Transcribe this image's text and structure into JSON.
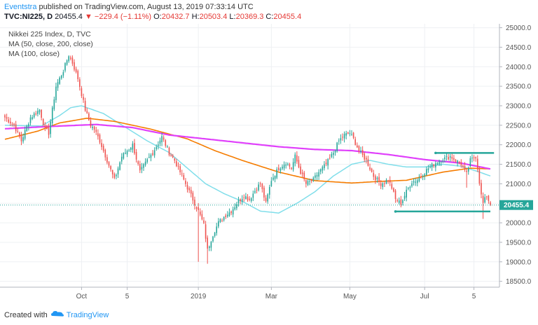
{
  "header": {
    "author": "Eventstra",
    "published_text": " published on TradingView.com, August 13, 2019 07:33:14 UTC",
    "symbol": "TVC:NI225, D",
    "last": "20455.4",
    "arrow": "▼",
    "change": "−229.4 (−1.11%)",
    "o_label": "O:",
    "o_value": "20432.7",
    "h_label": "H:",
    "h_value": "20503.4",
    "l_label": "L:",
    "l_value": "20369.3",
    "c_label": "C:",
    "c_value": "20455.4"
  },
  "legend": {
    "title": "Nikkei 225 Index, D, TVC",
    "ma1": "MA (50, close, 200, close)",
    "ma2": "MA (100, close)"
  },
  "footer": {
    "created_with": "Created with",
    "brand": "TradingView"
  },
  "colors": {
    "up": "#26a69a",
    "down": "#ef5350",
    "ma50": "#80deea",
    "ma100": "#f57c00",
    "ma200": "#e040fb",
    "annotation": "#26a69a",
    "price_tag": "#26a69a"
  },
  "chart_data": {
    "type": "candlestick",
    "title": "Nikkei 225 Index, D, TVC",
    "x_ticks": [
      "Oct",
      "5",
      "2019",
      "Mar",
      "May",
      "Jul",
      "5"
    ],
    "y_ticks": [
      18500,
      19000,
      19500,
      20000,
      20500,
      21000,
      21500,
      22000,
      22500,
      23000,
      23500,
      24000,
      24500,
      25000
    ],
    "ylim": [
      18350,
      25100
    ],
    "last_price": 20455.4,
    "anchors": [
      [
        0,
        22700
      ],
      [
        5,
        22500
      ],
      [
        9,
        22100
      ],
      [
        14,
        22700
      ],
      [
        19,
        22900
      ],
      [
        22,
        22400
      ],
      [
        24,
        22300
      ],
      [
        28,
        23500
      ],
      [
        32,
        23900
      ],
      [
        35,
        24300
      ],
      [
        37,
        24100
      ],
      [
        40,
        23700
      ],
      [
        44,
        22900
      ],
      [
        47,
        22500
      ],
      [
        49,
        22400
      ],
      [
        52,
        22100
      ],
      [
        56,
        21600
      ],
      [
        60,
        21100
      ],
      [
        64,
        21700
      ],
      [
        68,
        21900
      ],
      [
        70,
        22000
      ],
      [
        74,
        21300
      ],
      [
        78,
        21600
      ],
      [
        81,
        21800
      ],
      [
        86,
        22200
      ],
      [
        90,
        21800
      ],
      [
        93,
        21600
      ],
      [
        97,
        21200
      ],
      [
        99,
        21000
      ],
      [
        103,
        20600
      ],
      [
        106,
        20300
      ],
      [
        109,
        19950
      ],
      [
        111,
        19300
      ],
      [
        114,
        19700
      ],
      [
        117,
        20000
      ],
      [
        121,
        20200
      ],
      [
        124,
        20300
      ],
      [
        127,
        20500
      ],
      [
        131,
        20700
      ],
      [
        134,
        20600
      ],
      [
        138,
        20900
      ],
      [
        140,
        21000
      ],
      [
        143,
        20500
      ],
      [
        146,
        21100
      ],
      [
        150,
        21400
      ],
      [
        154,
        21550
      ],
      [
        157,
        21400
      ],
      [
        159,
        21700
      ],
      [
        162,
        21300
      ],
      [
        165,
        21000
      ],
      [
        169,
        21100
      ],
      [
        172,
        21300
      ],
      [
        176,
        21500
      ],
      [
        180,
        21800
      ],
      [
        183,
        22100
      ],
      [
        186,
        22250
      ],
      [
        189,
        22300
      ],
      [
        191,
        22150
      ],
      [
        194,
        21850
      ],
      [
        198,
        21600
      ],
      [
        202,
        21200
      ],
      [
        206,
        21000
      ],
      [
        210,
        21100
      ],
      [
        212,
        20900
      ],
      [
        214,
        20600
      ],
      [
        217,
        20500
      ],
      [
        220,
        20800
      ],
      [
        223,
        21050
      ],
      [
        226,
        21100
      ],
      [
        229,
        21250
      ],
      [
        232,
        21400
      ],
      [
        235,
        21500
      ],
      [
        238,
        21600
      ],
      [
        241,
        21650
      ],
      [
        244,
        21700
      ],
      [
        247,
        21600
      ],
      [
        250,
        21500
      ],
      [
        253,
        21250
      ],
      [
        255,
        21600
      ],
      [
        258,
        21700
      ],
      [
        259,
        21400
      ],
      [
        261,
        20700
      ],
      [
        262,
        20500
      ],
      [
        264,
        20700
      ],
      [
        266,
        20455
      ]
    ],
    "wicks": [
      [
        253,
        20900,
        21300
      ],
      [
        262,
        20100,
        20550
      ],
      [
        106,
        19000,
        20400
      ],
      [
        111,
        18950,
        19500
      ]
    ],
    "moving_averages": [
      {
        "name": "MA (50)",
        "points": [
          [
            0,
            22500
          ],
          [
            20,
            22480
          ],
          [
            30,
            22750
          ],
          [
            36,
            22950
          ],
          [
            42,
            23000
          ],
          [
            54,
            22800
          ],
          [
            66,
            22450
          ],
          [
            78,
            22100
          ],
          [
            90,
            21800
          ],
          [
            100,
            21400
          ],
          [
            110,
            21000
          ],
          [
            120,
            20750
          ],
          [
            130,
            20550
          ],
          [
            140,
            20300
          ],
          [
            150,
            20250
          ],
          [
            160,
            20500
          ],
          [
            170,
            20800
          ],
          [
            180,
            21200
          ],
          [
            190,
            21500
          ],
          [
            200,
            21600
          ],
          [
            210,
            21500
          ],
          [
            220,
            21430
          ],
          [
            230,
            21430
          ],
          [
            240,
            21500
          ],
          [
            250,
            21450
          ],
          [
            260,
            21300
          ],
          [
            266,
            21200
          ]
        ]
      },
      {
        "name": "MA (100)",
        "points": [
          [
            0,
            22140
          ],
          [
            18,
            22350
          ],
          [
            30,
            22560
          ],
          [
            45,
            22680
          ],
          [
            60,
            22600
          ],
          [
            80,
            22400
          ],
          [
            100,
            22150
          ],
          [
            115,
            21850
          ],
          [
            130,
            21600
          ],
          [
            150,
            21300
          ],
          [
            170,
            21080
          ],
          [
            190,
            21020
          ],
          [
            205,
            21060
          ],
          [
            220,
            21090
          ],
          [
            240,
            21300
          ],
          [
            255,
            21400
          ],
          [
            266,
            21380
          ]
        ]
      },
      {
        "name": "MA (200)",
        "points": [
          [
            0,
            22410
          ],
          [
            25,
            22470
          ],
          [
            50,
            22520
          ],
          [
            70,
            22440
          ],
          [
            90,
            22250
          ],
          [
            110,
            22150
          ],
          [
            130,
            22050
          ],
          [
            150,
            21950
          ],
          [
            170,
            21880
          ],
          [
            190,
            21850
          ],
          [
            210,
            21750
          ],
          [
            230,
            21620
          ],
          [
            250,
            21530
          ],
          [
            266,
            21380
          ]
        ]
      }
    ],
    "annotations": [
      {
        "type": "hline",
        "y": 21790,
        "x1": 236,
        "x2": 268
      },
      {
        "type": "hline",
        "y": 20290,
        "x1": 214,
        "x2": 266
      }
    ]
  }
}
